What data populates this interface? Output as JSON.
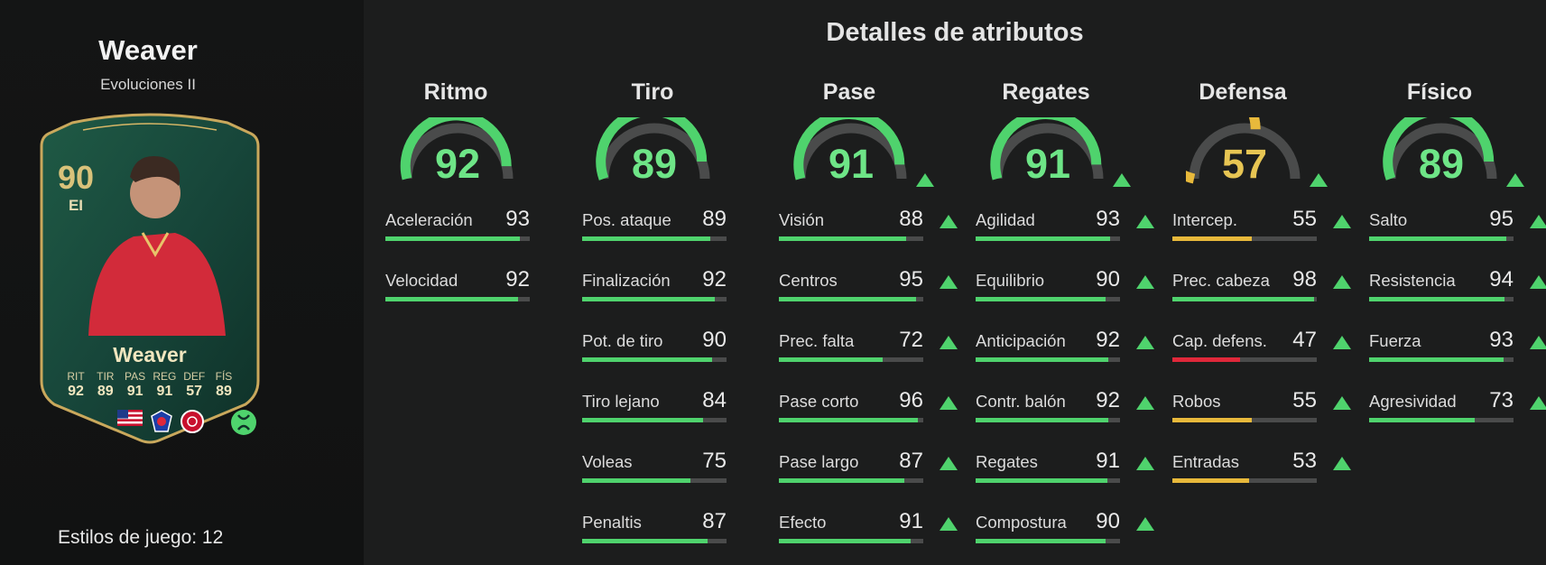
{
  "player": {
    "name": "Weaver",
    "subtitle": "Evoluciones II",
    "playstyles_text": "Estilos de juego: 12"
  },
  "card": {
    "rating": "90",
    "position": "EI",
    "name": "Weaver",
    "stats": [
      {
        "label": "RIT",
        "value": "92"
      },
      {
        "label": "TIR",
        "value": "89"
      },
      {
        "label": "PAS",
        "value": "91"
      },
      {
        "label": "REG",
        "value": "91"
      },
      {
        "label": "DEF",
        "value": "57"
      },
      {
        "label": "FÍS",
        "value": "89"
      }
    ]
  },
  "title": "Detalles de atributos",
  "colors": {
    "green": "#4fd36d",
    "yellow": "#e8b93b",
    "red": "#e0283a",
    "track": "#4a4b4b"
  },
  "categories": [
    {
      "name": "Ritmo",
      "value": "92",
      "fraction": 0.92,
      "color": "#4fd36d",
      "upgraded": false,
      "attributes": [
        {
          "label": "Aceleración",
          "value": "93",
          "fraction": 0.93,
          "color": "#4fd36d",
          "upgraded": false
        },
        {
          "label": "Velocidad",
          "value": "92",
          "fraction": 0.92,
          "color": "#4fd36d",
          "upgraded": false
        }
      ]
    },
    {
      "name": "Tiro",
      "value": "89",
      "fraction": 0.89,
      "color": "#4fd36d",
      "upgraded": false,
      "attributes": [
        {
          "label": "Pos. ataque",
          "value": "89",
          "fraction": 0.89,
          "color": "#4fd36d",
          "upgraded": false
        },
        {
          "label": "Finalización",
          "value": "92",
          "fraction": 0.92,
          "color": "#4fd36d",
          "upgraded": false
        },
        {
          "label": "Pot. de tiro",
          "value": "90",
          "fraction": 0.9,
          "color": "#4fd36d",
          "upgraded": false
        },
        {
          "label": "Tiro lejano",
          "value": "84",
          "fraction": 0.84,
          "color": "#4fd36d",
          "upgraded": false
        },
        {
          "label": "Voleas",
          "value": "75",
          "fraction": 0.75,
          "color": "#4fd36d",
          "upgraded": false
        },
        {
          "label": "Penaltis",
          "value": "87",
          "fraction": 0.87,
          "color": "#4fd36d",
          "upgraded": false
        }
      ]
    },
    {
      "name": "Pase",
      "value": "91",
      "fraction": 0.91,
      "color": "#4fd36d",
      "upgraded": true,
      "attributes": [
        {
          "label": "Visión",
          "value": "88",
          "fraction": 0.88,
          "color": "#4fd36d",
          "upgraded": true
        },
        {
          "label": "Centros",
          "value": "95",
          "fraction": 0.95,
          "color": "#4fd36d",
          "upgraded": true
        },
        {
          "label": "Prec. falta",
          "value": "72",
          "fraction": 0.72,
          "color": "#4fd36d",
          "upgraded": true
        },
        {
          "label": "Pase corto",
          "value": "96",
          "fraction": 0.96,
          "color": "#4fd36d",
          "upgraded": true
        },
        {
          "label": "Pase largo",
          "value": "87",
          "fraction": 0.87,
          "color": "#4fd36d",
          "upgraded": true
        },
        {
          "label": "Efecto",
          "value": "91",
          "fraction": 0.91,
          "color": "#4fd36d",
          "upgraded": true
        }
      ]
    },
    {
      "name": "Regates",
      "value": "91",
      "fraction": 0.91,
      "color": "#4fd36d",
      "upgraded": true,
      "attributes": [
        {
          "label": "Agilidad",
          "value": "93",
          "fraction": 0.93,
          "color": "#4fd36d",
          "upgraded": true
        },
        {
          "label": "Equilibrio",
          "value": "90",
          "fraction": 0.9,
          "color": "#4fd36d",
          "upgraded": true
        },
        {
          "label": "Anticipación",
          "value": "92",
          "fraction": 0.92,
          "color": "#4fd36d",
          "upgraded": true
        },
        {
          "label": "Contr. balón",
          "value": "92",
          "fraction": 0.92,
          "color": "#4fd36d",
          "upgraded": true
        },
        {
          "label": "Regates",
          "value": "91",
          "fraction": 0.91,
          "color": "#4fd36d",
          "upgraded": true
        },
        {
          "label": "Compostura",
          "value": "90",
          "fraction": 0.9,
          "color": "#4fd36d",
          "upgraded": true
        }
      ]
    },
    {
      "name": "Defensa",
      "value": "57",
      "fraction": 0.57,
      "color": "#e8b93b",
      "upgraded": true,
      "attributes": [
        {
          "label": "Intercep.",
          "value": "55",
          "fraction": 0.55,
          "color": "#e8b93b",
          "upgraded": true
        },
        {
          "label": "Prec. cabeza",
          "value": "98",
          "fraction": 0.98,
          "color": "#4fd36d",
          "upgraded": true
        },
        {
          "label": "Cap. defens.",
          "value": "47",
          "fraction": 0.47,
          "color": "#e0283a",
          "upgraded": true
        },
        {
          "label": "Robos",
          "value": "55",
          "fraction": 0.55,
          "color": "#e8b93b",
          "upgraded": true
        },
        {
          "label": "Entradas",
          "value": "53",
          "fraction": 0.53,
          "color": "#e8b93b",
          "upgraded": true
        }
      ]
    },
    {
      "name": "Físico",
      "value": "89",
      "fraction": 0.89,
      "color": "#4fd36d",
      "upgraded": true,
      "attributes": [
        {
          "label": "Salto",
          "value": "95",
          "fraction": 0.95,
          "color": "#4fd36d",
          "upgraded": true
        },
        {
          "label": "Resistencia",
          "value": "94",
          "fraction": 0.94,
          "color": "#4fd36d",
          "upgraded": true
        },
        {
          "label": "Fuerza",
          "value": "93",
          "fraction": 0.93,
          "color": "#4fd36d",
          "upgraded": true
        },
        {
          "label": "Agresividad",
          "value": "73",
          "fraction": 0.73,
          "color": "#4fd36d",
          "upgraded": true
        }
      ]
    }
  ]
}
